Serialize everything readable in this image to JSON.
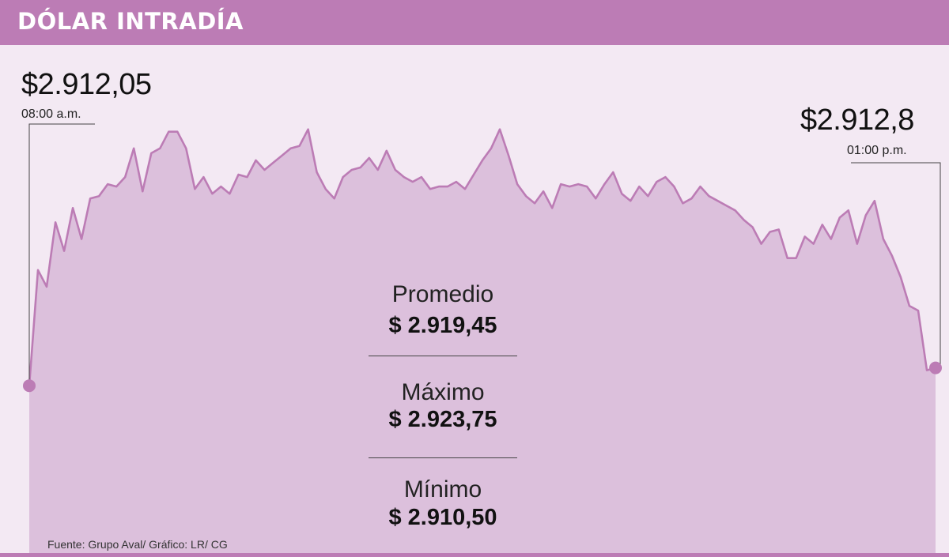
{
  "title": "DÓLAR INTRADÍA",
  "source": "Fuente: Grupo Aval/ Gráfico: LR/ CG",
  "start": {
    "price": "$2.912,05",
    "time": "08:00 a.m."
  },
  "end": {
    "price": "$2.912,8",
    "time": "01:00 p.m."
  },
  "stats": [
    {
      "label": "Promedio",
      "value": "$ 2.919,45"
    },
    {
      "label": "Máximo",
      "value": "$ 2.923,75"
    },
    {
      "label": "Mínimo",
      "value": "$ 2.910,50"
    }
  ],
  "colors": {
    "header": "#bc7cb5",
    "line": "#bc7cb5",
    "area": "#dcc0dc",
    "background": "#f3e9f3"
  },
  "chart_data": {
    "type": "area",
    "x_range": [
      "08:00 a.m.",
      "01:00 p.m."
    ],
    "ylim": [
      2910.5,
      2923.75
    ],
    "series": [
      {
        "values": [
          2912.05,
          2916.9,
          2916.2,
          2918.9,
          2917.7,
          2919.5,
          2918.2,
          2919.9,
          2920.0,
          2920.5,
          2920.4,
          2920.8,
          2922.0,
          2920.2,
          2921.8,
          2922.0,
          2922.7,
          2922.7,
          2922.0,
          2920.3,
          2920.8,
          2920.1,
          2920.4,
          2920.1,
          2920.9,
          2920.8,
          2921.5,
          2921.1,
          2921.4,
          2921.7,
          2922.0,
          2922.1,
          2922.8,
          2921.0,
          2920.3,
          2919.9,
          2920.8,
          2921.1,
          2921.2,
          2921.6,
          2921.1,
          2921.9,
          2921.1,
          2920.8,
          2920.6,
          2920.8,
          2920.3,
          2920.4,
          2920.4,
          2920.6,
          2920.3,
          2920.9,
          2921.5,
          2922.0,
          2922.8,
          2921.7,
          2920.5,
          2920.0,
          2919.7,
          2920.2,
          2919.5,
          2920.5,
          2920.4,
          2920.5,
          2920.4,
          2919.9,
          2920.5,
          2921.0,
          2920.1,
          2919.8,
          2920.4,
          2920.0,
          2920.6,
          2920.8,
          2920.4,
          2919.7,
          2919.9,
          2920.4,
          2920.0,
          2919.8,
          2919.6,
          2919.4,
          2919.0,
          2918.7,
          2918.0,
          2918.5,
          2918.6,
          2917.4,
          2917.4,
          2918.3,
          2918.0,
          2918.8,
          2918.2,
          2919.1,
          2919.4,
          2918.0,
          2919.2,
          2919.8,
          2918.2,
          2917.5,
          2916.6,
          2915.4,
          2915.2,
          2912.7,
          2912.8
        ]
      }
    ]
  }
}
